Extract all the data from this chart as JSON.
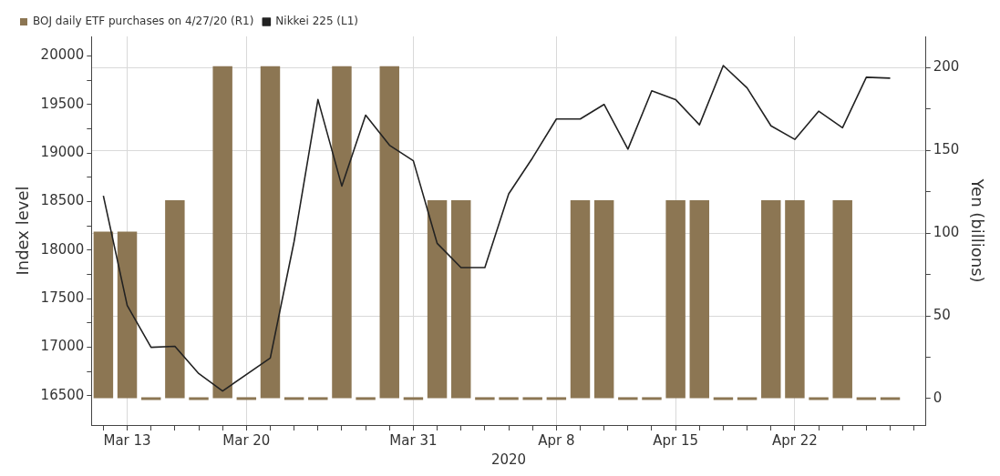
{
  "chart_data": {
    "type": "bar",
    "xlabel": "2020",
    "ylabel": "Index level",
    "y2label": "Yen (billions)",
    "categories": [
      null,
      "Mar 13",
      null,
      null,
      null,
      null,
      "Mar 20",
      null,
      null,
      null,
      null,
      null,
      null,
      "Mar 31",
      null,
      null,
      null,
      null,
      null,
      "Apr 8",
      null,
      null,
      null,
      null,
      "Apr 15",
      null,
      null,
      null,
      null,
      "Apr 22",
      null,
      null,
      null,
      null,
      null
    ],
    "series": [
      {
        "name": "BOJ daily ETF purchases on 4/27/20 (R1)",
        "axis": "y2",
        "color": "#8c7653",
        "values": [
          101,
          101,
          0,
          120,
          0,
          201,
          0,
          201,
          0,
          0,
          201,
          0,
          201,
          0,
          120,
          120,
          0,
          0,
          0,
          0,
          120,
          120,
          0,
          0,
          120,
          120,
          0,
          0,
          120,
          120,
          0,
          120,
          0,
          0,
          null
        ]
      },
      {
        "name": "Nikkei 225 (L1)",
        "type": "line",
        "color": "#222222",
        "values": [
          18560,
          17430,
          17000,
          17010,
          16730,
          16550,
          null,
          16890,
          18090,
          19550,
          18660,
          19390,
          19080,
          18920,
          18070,
          17820,
          17820,
          18580,
          18950,
          19350,
          19350,
          19500,
          19040,
          19640,
          19550,
          19290,
          19900,
          19670,
          19280,
          19140,
          19430,
          19260,
          19780,
          19770,
          null
        ]
      }
    ],
    "ylim": [
      16200,
      20200
    ],
    "yticks": [
      16500,
      {
        "value": 16750,
        "label": null
      },
      17000,
      {
        "value": 17250,
        "label": null
      },
      17500,
      {
        "value": 17750,
        "label": null
      },
      18000,
      {
        "value": 18250,
        "label": null
      },
      18500,
      {
        "value": 18750,
        "label": null
      },
      19000,
      {
        "value": 19250,
        "label": null
      },
      19500,
      {
        "value": 19750,
        "label": null
      },
      20000
    ],
    "y2lim": [
      -16,
      219
    ],
    "y2ticks": [
      0,
      {
        "value": 25,
        "label": null
      },
      50,
      {
        "value": 75,
        "label": null
      },
      100,
      {
        "value": 125,
        "label": null
      },
      150,
      {
        "value": 175,
        "label": null
      },
      200
    ],
    "grid": true,
    "legend": "top left"
  }
}
